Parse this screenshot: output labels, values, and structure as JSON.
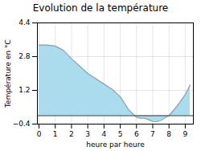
{
  "chart_data": {
    "type": "area",
    "title": "Evolution de la température",
    "xlabel": "heure par heure",
    "ylabel": "Température en °C",
    "x": [
      0,
      0.5,
      1,
      1.5,
      2,
      2.5,
      3,
      3.5,
      4,
      4.5,
      5,
      5.5,
      6,
      6.25,
      6.5,
      7,
      7.25,
      7.5,
      8,
      8.5,
      9,
      9.3
    ],
    "values": [
      3.35,
      3.35,
      3.3,
      3.1,
      2.7,
      2.35,
      2.0,
      1.75,
      1.5,
      1.25,
      0.9,
      0.3,
      -0.08,
      -0.12,
      -0.12,
      -0.27,
      -0.28,
      -0.22,
      0.0,
      0.45,
      1.0,
      1.45
    ],
    "color": "#aadcee",
    "xlim": [
      -0.1,
      9.5
    ],
    "xticks": [
      0,
      1,
      2,
      3,
      4,
      5,
      6,
      7,
      8,
      9
    ],
    "ylim": [
      -0.4,
      4.4
    ],
    "yticks": [
      -0.4,
      1.2,
      2.8,
      4.4
    ],
    "grid": true
  }
}
